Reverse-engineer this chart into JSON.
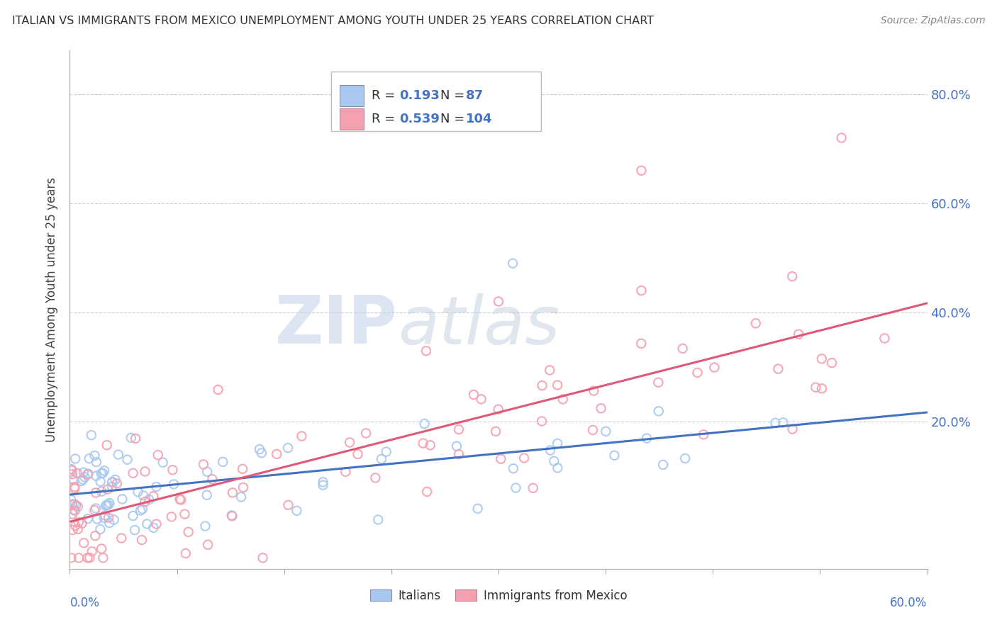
{
  "title": "ITALIAN VS IMMIGRANTS FROM MEXICO UNEMPLOYMENT AMONG YOUTH UNDER 25 YEARS CORRELATION CHART",
  "source": "Source: ZipAtlas.com",
  "ylabel": "Unemployment Among Youth under 25 years",
  "y_ticks": [
    0.0,
    0.2,
    0.4,
    0.6,
    0.8
  ],
  "y_tick_labels": [
    "",
    "20.0%",
    "40.0%",
    "60.0%",
    "80.0%"
  ],
  "x_range": [
    0.0,
    0.6
  ],
  "y_range": [
    -0.07,
    0.88
  ],
  "legend_italian_r": "0.193",
  "legend_italian_n": "87",
  "legend_mexico_r": "0.539",
  "legend_mexico_n": "104",
  "italian_color": "#a8c8f0",
  "mexico_color": "#f5a0b0",
  "italian_line_color": "#4472c4",
  "mexico_line_color": "#e05878",
  "background_color": "#ffffff",
  "grid_color": "#c8d0dc",
  "watermark_color": "#dde4ee",
  "italian_label": "Italians",
  "mexico_label": "Immigrants from Mexico"
}
